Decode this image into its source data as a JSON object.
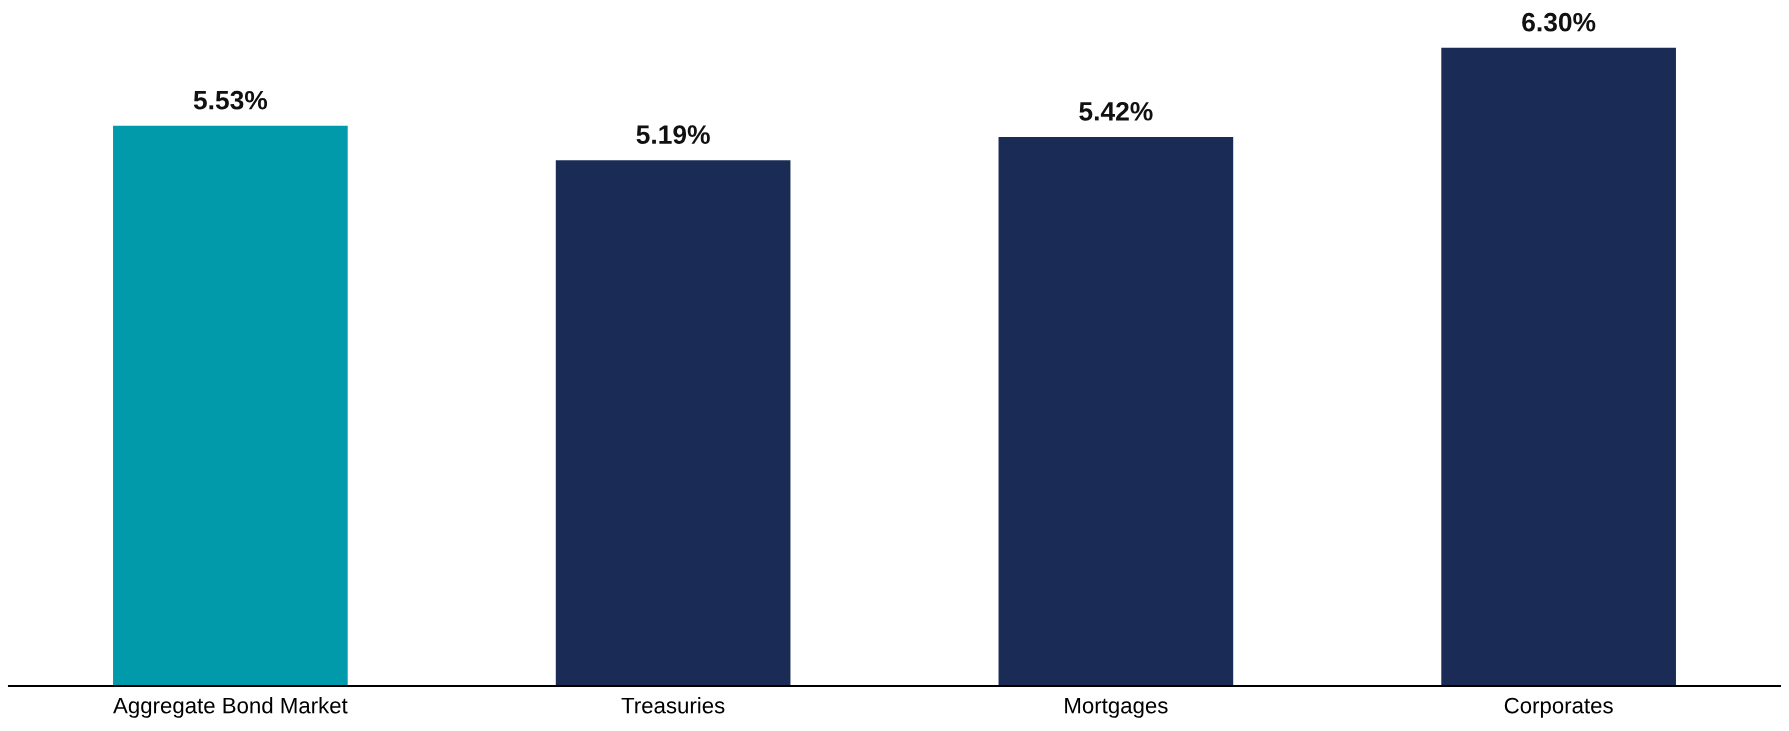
{
  "chart_data": {
    "type": "bar",
    "categories": [
      "Aggregate Bond Market",
      "Treasuries",
      "Mortgages",
      "Corporates"
    ],
    "values": [
      5.53,
      5.19,
      5.42,
      6.3
    ],
    "colors": [
      "#009aab",
      "#1a2b55",
      "#1a2b55",
      "#1a2b55"
    ],
    "value_labels": [
      "5.53%",
      "5.19%",
      "5.42%",
      "6.30%"
    ],
    "grid": false,
    "tick_labels": "x"
  }
}
